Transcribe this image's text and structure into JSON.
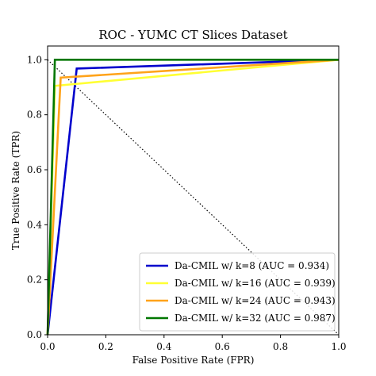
{
  "chart_data": {
    "type": "line",
    "title": "ROC - YUMC CT Slices Dataset",
    "xlabel": "False Positive Rate (FPR)",
    "ylabel": "True Positive Rate (TPR)",
    "xlim": [
      0,
      1
    ],
    "ylim": [
      0,
      1.05
    ],
    "xticks": [
      "0.0",
      "0.2",
      "0.4",
      "0.6",
      "0.8",
      "1.0"
    ],
    "yticks": [
      "0.0",
      "0.2",
      "0.4",
      "0.6",
      "0.8",
      "1.0"
    ],
    "grid": false,
    "legend_position": "lower-right",
    "diagonal_reference": {
      "x": [
        0,
        1
      ],
      "y": [
        1,
        0
      ],
      "style": "dotted",
      "color": "#000000"
    },
    "series": [
      {
        "name": "Da-CMIL w/ k=8 (AUC = 0.934)",
        "color": "#0000cc",
        "x": [
          0,
          0.1,
          1
        ],
        "y": [
          0,
          0.968,
          1
        ]
      },
      {
        "name": "Da-CMIL w/ k=16 (AUC = 0.939)",
        "color": "#ffff33",
        "x": [
          0,
          0.025,
          1
        ],
        "y": [
          0,
          0.905,
          1
        ]
      },
      {
        "name": "Da-CMIL w/ k=24 (AUC = 0.943)",
        "color": "#ffa31a",
        "x": [
          0,
          0.045,
          1
        ],
        "y": [
          0,
          0.935,
          1
        ]
      },
      {
        "name": "Da-CMIL w/ k=32 (AUC = 0.987)",
        "color": "#007700",
        "x": [
          0,
          0.025,
          1
        ],
        "y": [
          0,
          1.0,
          1
        ]
      }
    ]
  }
}
